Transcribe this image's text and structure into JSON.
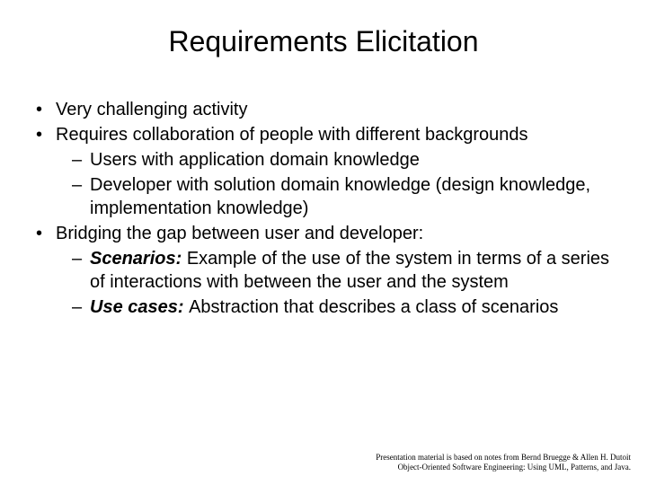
{
  "title": "Requirements Elicitation",
  "bullets": {
    "b1": "Very challenging activity",
    "b2": "Requires collaboration of people with different backgrounds",
    "b2a": "Users with application domain knowledge",
    "b2b": "Developer with solution domain knowledge (design knowledge, implementation knowledge)",
    "b3": "Bridging the gap between user and developer:",
    "b3a_label": "Scenarios:",
    "b3a_rest": " Example of the use of the system in terms of a series of interactions with between the user and the system",
    "b3b_label": "Use cases: ",
    "b3b_rest": " Abstraction that describes a class of scenarios"
  },
  "footer": {
    "line1": "Presentation material is based on notes from Bernd Bruegge & Allen H. Dutoit",
    "line2": "Object-Oriented Software Engineering: Using UML, Patterns, and Java."
  },
  "markers": {
    "dot": "•",
    "dash": "–"
  },
  "colors": {
    "background": "#ffffff",
    "text": "#000000"
  }
}
